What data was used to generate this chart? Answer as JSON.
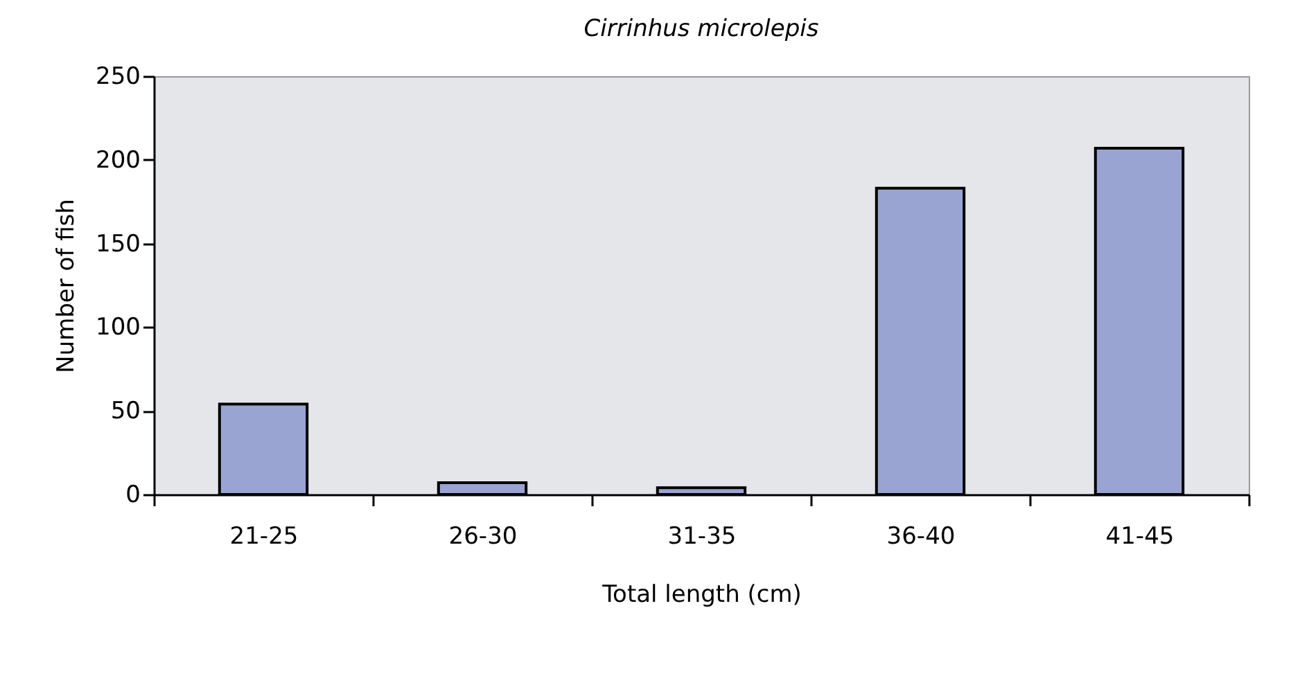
{
  "chart_data": {
    "type": "bar",
    "title": "Cirrinhus microlepis",
    "xlabel": "Total length (cm)",
    "ylabel": "Number of fish",
    "categories": [
      "21-25",
      "26-30",
      "31-35",
      "36-40",
      "41-45"
    ],
    "values": [
      54,
      7,
      4,
      183,
      207
    ],
    "color": "#99a4d2",
    "ylim": [
      0,
      250
    ],
    "yticks": [
      0,
      50,
      100,
      150,
      200,
      250
    ],
    "grid": false
  }
}
